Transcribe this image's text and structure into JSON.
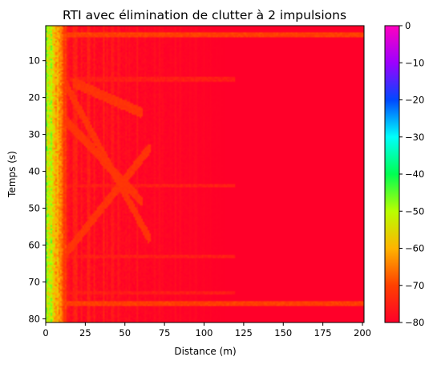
{
  "chart_data": {
    "type": "heatmap",
    "title": "RTI avec élimination de clutter à 2 impulsions",
    "xlabel": "Distance (m)",
    "ylabel": "Temps (s)",
    "xlim": [
      0,
      201
    ],
    "ylim": [
      81,
      0.5
    ],
    "x_ticks": [
      0,
      25,
      50,
      75,
      100,
      125,
      150,
      175,
      200
    ],
    "y_ticks": [
      10,
      20,
      30,
      40,
      50,
      60,
      70,
      80
    ],
    "colormap": "gist_rainbow",
    "colorbar": {
      "range": [
        -80,
        0
      ],
      "ticks": [
        0,
        -10,
        -20,
        -30,
        -40,
        -50,
        -60,
        -70,
        -80
      ]
    },
    "features": {
      "background_level_db": -80,
      "near_range_hot_region_max_m": 15,
      "bright_horizontal_lines_s": [
        3,
        76
      ],
      "faint_horizontal_lines_s": [
        15,
        44,
        63,
        73
      ],
      "diagonal_tracks": [
        {
          "from": [
            2,
            8
          ],
          "to": [
            65,
            58
          ]
        },
        {
          "from": [
            8,
            24
          ],
          "to": [
            60,
            48
          ]
        },
        {
          "from": [
            2,
            68
          ],
          "to": [
            65,
            34
          ]
        },
        {
          "from": [
            18,
            16
          ],
          "to": [
            60,
            24
          ]
        }
      ]
    }
  },
  "colors": {
    "gist_rainbow_stops": [
      [
        0.0,
        "#ff0029"
      ],
      [
        0.125,
        "#ff4000"
      ],
      [
        0.25,
        "#ffb400"
      ],
      [
        0.375,
        "#b8ff00"
      ],
      [
        0.5,
        "#00ff52"
      ],
      [
        0.625,
        "#00fffb"
      ],
      [
        0.75,
        "#0048ff"
      ],
      [
        0.875,
        "#9d00ff"
      ],
      [
        1.0,
        "#ff00bf"
      ]
    ]
  }
}
